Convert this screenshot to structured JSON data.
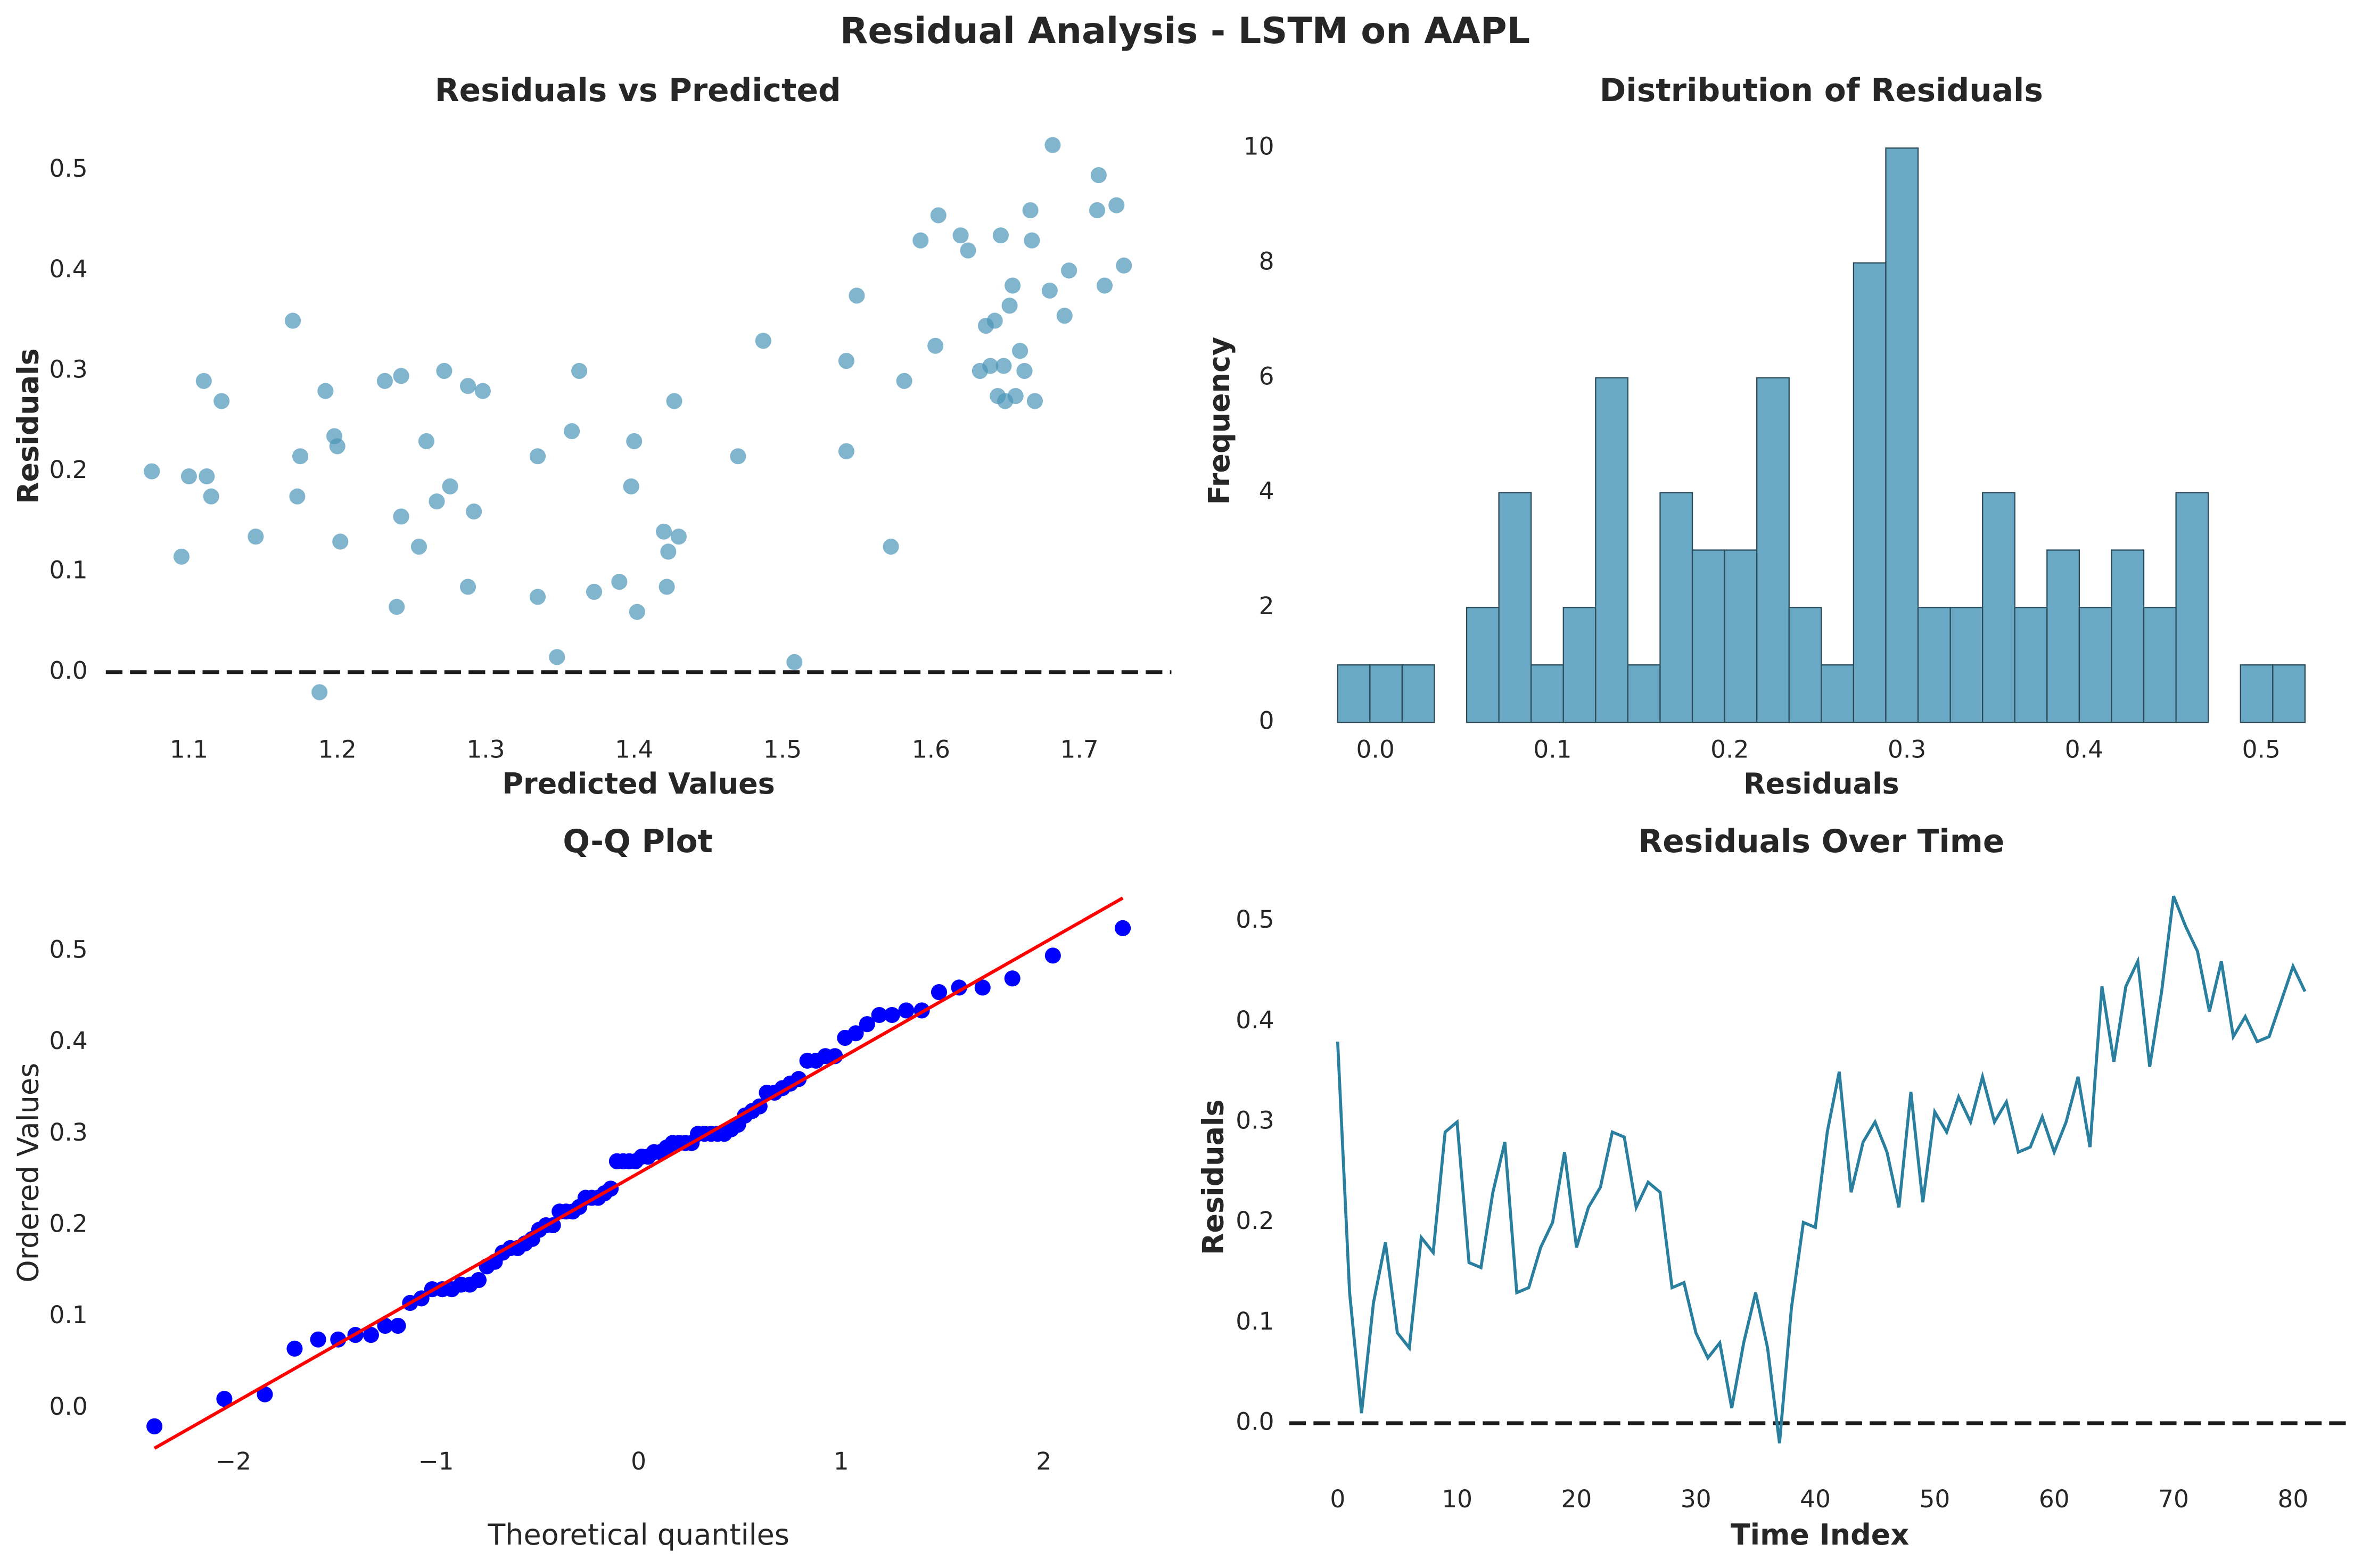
{
  "title": "Residual Analysis - LSTM on AAPL",
  "chart_data": [
    {
      "type": "scatter",
      "title": "Residuals vs Predicted",
      "x_label": "Predicted Values",
      "y_label": "Residuals",
      "color": "#4a96b8",
      "x": [
        1.075,
        1.095,
        1.1,
        1.11,
        1.112,
        1.115,
        1.122,
        1.145,
        1.17,
        1.173,
        1.175,
        1.188,
        1.192,
        1.198,
        1.2,
        1.202,
        1.232,
        1.24,
        1.243,
        1.243,
        1.255,
        1.26,
        1.267,
        1.272,
        1.276,
        1.288,
        1.288,
        1.292,
        1.298,
        1.335,
        1.335,
        1.348,
        1.358,
        1.363,
        1.373,
        1.39,
        1.398,
        1.4,
        1.402,
        1.42,
        1.422,
        1.423,
        1.427,
        1.43,
        1.47,
        1.487,
        1.508,
        1.543,
        1.543,
        1.55,
        1.573,
        1.582,
        1.593,
        1.603,
        1.605,
        1.62,
        1.625,
        1.633,
        1.637,
        1.64,
        1.643,
        1.645,
        1.647,
        1.649,
        1.65,
        1.653,
        1.655,
        1.657,
        1.66,
        1.663,
        1.667,
        1.668,
        1.67,
        1.68,
        1.682,
        1.69,
        1.693,
        1.712,
        1.713,
        1.717,
        1.725,
        1.73
      ],
      "values": [
        0.2,
        0.115,
        0.195,
        0.29,
        0.195,
        0.175,
        0.27,
        0.135,
        0.35,
        0.175,
        0.215,
        -0.02,
        0.28,
        0.235,
        0.225,
        0.13,
        0.29,
        0.065,
        0.295,
        0.155,
        0.125,
        0.23,
        0.17,
        0.3,
        0.185,
        0.085,
        0.285,
        0.16,
        0.28,
        0.215,
        0.075,
        0.015,
        0.24,
        0.3,
        0.08,
        0.09,
        0.185,
        0.23,
        0.06,
        0.14,
        0.085,
        0.12,
        0.27,
        0.135,
        0.215,
        0.33,
        0.01,
        0.31,
        0.22,
        0.375,
        0.125,
        0.29,
        0.43,
        0.325,
        0.455,
        0.435,
        0.42,
        0.3,
        0.345,
        0.305,
        0.35,
        0.275,
        0.435,
        0.305,
        0.27,
        0.365,
        0.385,
        0.275,
        0.32,
        0.3,
        0.46,
        0.43,
        0.27,
        0.38,
        0.525,
        0.355,
        0.4,
        0.46,
        0.495,
        0.385,
        0.465,
        0.405
      ],
      "reference_line": 0,
      "xlim": [
        1.044,
        1.762
      ],
      "ylim": [
        -0.05,
        0.54
      ],
      "xticks": [
        1.1,
        1.2,
        1.3,
        1.4,
        1.5,
        1.6,
        1.7
      ],
      "yticks": [
        {
          "value": 0,
          "label": "0.0"
        },
        0.1,
        0.2,
        0.3,
        0.4,
        0.5
      ]
    },
    {
      "type": "histogram",
      "title": "Distribution of Residuals",
      "x_label": "Residuals",
      "y_label": "Frequency",
      "color": "#69a9c5",
      "bins": [
        -0.0213,
        -0.0031,
        0.0151,
        0.0333,
        0.0515,
        0.0697,
        0.0879,
        0.1061,
        0.1243,
        0.1425,
        0.1607,
        0.1789,
        0.1971,
        0.2153,
        0.2335,
        0.2517,
        0.2699,
        0.2881,
        0.3063,
        0.3245,
        0.3427,
        0.3609,
        0.3791,
        0.3973,
        0.4155,
        0.4337,
        0.4519,
        0.4701,
        0.4883,
        0.5065,
        0.5247
      ],
      "values": [
        1,
        1,
        1,
        0,
        2,
        4,
        1,
        2,
        6,
        1,
        4,
        3,
        3,
        6,
        2,
        1,
        8,
        10,
        2,
        2,
        4,
        2,
        3,
        2,
        3,
        2,
        4,
        0,
        1,
        1
      ],
      "xlim": [
        -0.0213,
        0.5247
      ],
      "ylim": [
        0,
        10.5
      ],
      "xticks": [
        {
          "value": 0,
          "label": "0.0"
        },
        0.1,
        0.2,
        0.3,
        0.4,
        0.5
      ],
      "yticks": [
        0,
        2,
        4,
        6,
        8,
        10
      ]
    },
    {
      "type": "scatter",
      "title": "Q-Q Plot",
      "x_label": "Theoretical quantiles",
      "y_label": "Ordered Values",
      "color": "#0000ff",
      "x": [
        -2.39,
        -2.045,
        -1.845,
        -1.698,
        -1.582,
        -1.483,
        -1.398,
        -1.321,
        -1.251,
        -1.188,
        -1.128,
        -1.072,
        -1.019,
        -0.969,
        -0.922,
        -0.876,
        -0.833,
        -0.79,
        -0.749,
        -0.71,
        -0.671,
        -0.633,
        -0.597,
        -0.561,
        -0.525,
        -0.491,
        -0.457,
        -0.423,
        -0.39,
        -0.358,
        -0.325,
        -0.293,
        -0.262,
        -0.231,
        -0.2,
        -0.168,
        -0.138,
        -0.107,
        -0.076,
        -0.046,
        -0.015,
        0.015,
        0.046,
        0.076,
        0.107,
        0.138,
        0.168,
        0.2,
        0.231,
        0.262,
        0.293,
        0.325,
        0.358,
        0.39,
        0.423,
        0.457,
        0.491,
        0.525,
        0.561,
        0.597,
        0.633,
        0.671,
        0.71,
        0.749,
        0.79,
        0.833,
        0.876,
        0.922,
        0.969,
        1.019,
        1.072,
        1.128,
        1.188,
        1.251,
        1.321,
        1.398,
        1.483,
        1.582,
        1.698,
        1.845,
        2.045,
        2.39
      ],
      "values": [
        -0.02,
        0.01,
        0.015,
        0.065,
        0.075,
        0.075,
        0.08,
        0.08,
        0.09,
        0.09,
        0.115,
        0.12,
        0.13,
        0.13,
        0.13,
        0.135,
        0.135,
        0.14,
        0.155,
        0.16,
        0.17,
        0.175,
        0.175,
        0.18,
        0.185,
        0.195,
        0.2,
        0.2,
        0.215,
        0.215,
        0.215,
        0.22,
        0.23,
        0.23,
        0.23,
        0.235,
        0.24,
        0.27,
        0.27,
        0.27,
        0.27,
        0.275,
        0.275,
        0.28,
        0.28,
        0.285,
        0.29,
        0.29,
        0.29,
        0.29,
        0.3,
        0.3,
        0.3,
        0.3,
        0.3,
        0.305,
        0.31,
        0.32,
        0.325,
        0.33,
        0.345,
        0.345,
        0.35,
        0.355,
        0.36,
        0.38,
        0.38,
        0.385,
        0.385,
        0.405,
        0.41,
        0.42,
        0.43,
        0.43,
        0.435,
        0.435,
        0.455,
        0.46,
        0.46,
        0.47,
        0.495,
        0.525
      ],
      "fit_line": {
        "x": [
          -2.39,
          2.39
        ],
        "y": [
          -0.044,
          0.558
        ],
        "color": "#ff0000"
      },
      "xlim": [
        -2.63,
        2.63
      ],
      "ylim": [
        -0.05,
        0.565
      ],
      "xticks": [
        {
          "value": -2,
          "label": "−2"
        },
        {
          "value": -1,
          "label": "−1"
        },
        0,
        1,
        2
      ],
      "yticks": [
        {
          "value": 0,
          "label": "0.0"
        },
        0.1,
        0.2,
        0.3,
        0.4,
        0.5
      ]
    },
    {
      "type": "line",
      "title": "Residuals Over Time",
      "x_label": "Time Index",
      "y_label": "Residuals",
      "color": "#2a7f9e",
      "x": [
        0,
        1,
        2,
        3,
        4,
        5,
        6,
        7,
        8,
        9,
        10,
        11,
        12,
        13,
        14,
        15,
        16,
        17,
        18,
        19,
        20,
        21,
        22,
        23,
        24,
        25,
        26,
        27,
        28,
        29,
        30,
        31,
        32,
        33,
        34,
        35,
        36,
        37,
        38,
        39,
        40,
        41,
        42,
        43,
        44,
        45,
        46,
        47,
        48,
        49,
        50,
        51,
        52,
        53,
        54,
        55,
        56,
        57,
        58,
        59,
        60,
        61,
        62,
        63,
        64,
        65,
        66,
        67,
        68,
        69,
        70,
        71,
        72,
        73,
        74,
        75,
        76,
        77,
        78,
        79,
        80,
        81
      ],
      "values": [
        0.38,
        0.13,
        0.01,
        0.12,
        0.18,
        0.09,
        0.075,
        0.185,
        0.17,
        0.29,
        0.3,
        0.16,
        0.155,
        0.23,
        0.28,
        0.13,
        0.135,
        0.175,
        0.2,
        0.27,
        0.175,
        0.215,
        0.235,
        0.29,
        0.285,
        0.215,
        0.24,
        0.23,
        0.135,
        0.14,
        0.09,
        0.065,
        0.08,
        0.015,
        0.08,
        0.13,
        0.075,
        -0.02,
        0.115,
        0.2,
        0.195,
        0.29,
        0.35,
        0.23,
        0.28,
        0.3,
        0.27,
        0.215,
        0.33,
        0.22,
        0.31,
        0.29,
        0.325,
        0.3,
        0.345,
        0.3,
        0.32,
        0.27,
        0.275,
        0.305,
        0.27,
        0.3,
        0.345,
        0.275,
        0.435,
        0.36,
        0.435,
        0.46,
        0.355,
        0.43,
        0.525,
        0.495,
        0.47,
        0.41,
        0.46,
        0.385,
        0.405,
        0.38,
        0.385,
        0.42,
        0.455,
        0.43
      ],
      "reference_line": 0,
      "xlim": [
        -4.05,
        84.8
      ],
      "ylim": [
        -0.05,
        0.54
      ],
      "xticks": [
        0,
        10,
        20,
        30,
        40,
        50,
        60,
        70,
        80
      ],
      "yticks": [
        {
          "value": 0,
          "label": "0.0"
        },
        0.1,
        0.2,
        0.3,
        0.4,
        0.5
      ]
    }
  ]
}
